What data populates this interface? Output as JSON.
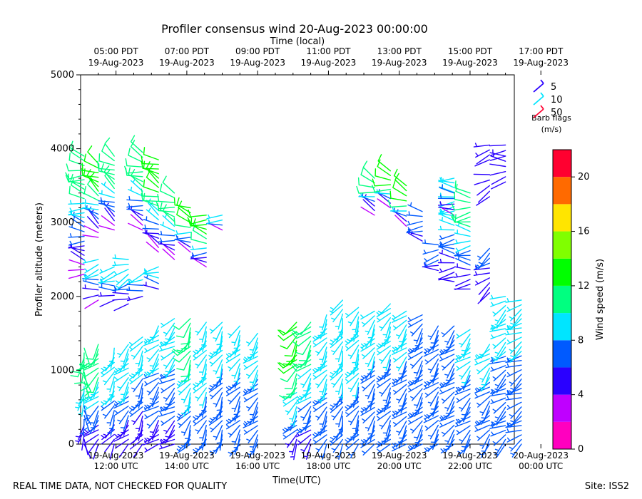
{
  "chart_data": {
    "type": "wind-barb-profile",
    "title": "Profiler consensus wind 20-Aug-2023 00:00:00",
    "xlabel": "Time(UTC)",
    "ylabel": "Profiler altitude (meters)",
    "top_axis_label": "Time (local)",
    "xlim_hours_utc": [
      11.0,
      23.25
    ],
    "ylim": [
      0,
      5000
    ],
    "yticks": [
      "0",
      "1000",
      "2000",
      "3000",
      "4000",
      "5000"
    ],
    "bottom_ticks": [
      {
        "hour": 12,
        "line1": "19-Aug-2023",
        "line2": "12:00 UTC"
      },
      {
        "hour": 14,
        "line1": "19-Aug-2023",
        "line2": "14:00 UTC"
      },
      {
        "hour": 16,
        "line1": "19-Aug-2023",
        "line2": "16:00 UTC"
      },
      {
        "hour": 18,
        "line1": "19-Aug-2023",
        "line2": "18:00 UTC"
      },
      {
        "hour": 20,
        "line1": "19-Aug-2023",
        "line2": "20:00 UTC"
      },
      {
        "hour": 22,
        "line1": "19-Aug-2023",
        "line2": "22:00 UTC"
      },
      {
        "hour": 24,
        "line1": "20-Aug-2023",
        "line2": "00:00 UTC"
      }
    ],
    "top_ticks": [
      {
        "hour": 12,
        "line1": "05:00 PDT",
        "line2": "19-Aug-2023"
      },
      {
        "hour": 14,
        "line1": "07:00 PDT",
        "line2": "19-Aug-2023"
      },
      {
        "hour": 16,
        "line1": "09:00 PDT",
        "line2": "19-Aug-2023"
      },
      {
        "hour": 18,
        "line1": "11:00 PDT",
        "line2": "19-Aug-2023"
      },
      {
        "hour": 20,
        "line1": "13:00 PDT",
        "line2": "19-Aug-2023"
      },
      {
        "hour": 22,
        "line1": "15:00 PDT",
        "line2": "19-Aug-2023"
      },
      {
        "hour": 24,
        "line1": "17:00 PDT",
        "line2": "19-Aug-2023"
      }
    ],
    "colorbar": {
      "label": "Wind speed (m/s)",
      "range": [
        0,
        22
      ],
      "ticks": [
        "0",
        "4",
        "8",
        "12",
        "16",
        "20"
      ],
      "bins": [
        {
          "from": 0,
          "to": 2,
          "color": "#ff00bf"
        },
        {
          "from": 2,
          "to": 4,
          "color": "#bf00ff"
        },
        {
          "from": 4,
          "to": 6,
          "color": "#2a00ff"
        },
        {
          "from": 6,
          "to": 8,
          "color": "#005aff"
        },
        {
          "from": 8,
          "to": 10,
          "color": "#00e5ff"
        },
        {
          "from": 10,
          "to": 12,
          "color": "#00ff80"
        },
        {
          "from": 12,
          "to": 14,
          "color": "#00ff00"
        },
        {
          "from": 14,
          "to": 16,
          "color": "#80ff00"
        },
        {
          "from": 16,
          "to": 18,
          "color": "#ffe500"
        },
        {
          "from": 18,
          "to": 20,
          "color": "#ff6a00"
        },
        {
          "from": 20,
          "to": 22,
          "color": "#ff0030"
        }
      ]
    },
    "barb_legend": {
      "title_line1": "Barb flags",
      "title_line2": "(m/s)",
      "entries": [
        {
          "value": "5",
          "color": "#2a00ff"
        },
        {
          "value": "10",
          "color": "#00e5ff"
        },
        {
          "value": "50",
          "color": "#ff0030"
        }
      ]
    },
    "barb_columns": [
      {
        "t": 11.1,
        "segments": [
          [
            0,
            1300,
            180,
            4,
            10
          ],
          [
            2300,
            3900,
            280,
            3,
            10
          ]
        ]
      },
      {
        "t": 11.5,
        "segments": [
          [
            0,
            1350,
            220,
            4,
            10
          ],
          [
            1950,
            2500,
            260,
            3,
            9
          ],
          [
            2800,
            3800,
            300,
            2,
            13
          ]
        ]
      },
      {
        "t": 11.95,
        "segments": [
          [
            0,
            1300,
            210,
            4,
            9
          ],
          [
            1950,
            2400,
            260,
            4,
            9
          ],
          [
            2900,
            3900,
            300,
            3,
            11
          ]
        ]
      },
      {
        "t": 12.35,
        "segments": [
          [
            0,
            1350,
            220,
            4,
            9
          ],
          [
            1900,
            2500,
            250,
            4,
            9
          ]
        ]
      },
      {
        "t": 12.75,
        "segments": [
          [
            0,
            1450,
            210,
            4,
            8
          ],
          [
            2000,
            2300,
            250,
            5,
            8
          ],
          [
            2900,
            3950,
            290,
            3,
            11
          ]
        ]
      },
      {
        "t": 13.2,
        "segments": [
          [
            0,
            1600,
            225,
            5,
            8
          ],
          [
            2100,
            2400,
            270,
            5,
            9
          ],
          [
            2600,
            3850,
            295,
            3,
            12
          ]
        ]
      },
      {
        "t": 13.65,
        "segments": [
          [
            0,
            1700,
            230,
            5,
            8
          ],
          [
            2500,
            3400,
            290,
            3,
            11
          ]
        ]
      },
      {
        "t": 14.1,
        "segments": [
          [
            0,
            1700,
            210,
            6,
            10
          ],
          [
            2600,
            3200,
            285,
            3,
            12
          ]
        ]
      },
      {
        "t": 14.55,
        "segments": [
          [
            0,
            1650,
            210,
            6,
            9
          ],
          [
            2400,
            3100,
            280,
            3,
            13
          ]
        ]
      },
      {
        "t": 15.0,
        "segments": [
          [
            0,
            1650,
            210,
            6,
            8
          ],
          [
            2900,
            3100,
            280,
            3,
            9
          ]
        ]
      },
      {
        "t": 15.5,
        "segments": [
          [
            0,
            1600,
            215,
            6,
            8
          ]
        ]
      },
      {
        "t": 16.0,
        "segments": [
          [
            0,
            1500,
            220,
            6,
            8
          ]
        ]
      },
      {
        "t": 17.1,
        "segments": [
          [
            0,
            1650,
            215,
            5,
            12
          ]
        ]
      },
      {
        "t": 17.5,
        "segments": [
          [
            0,
            1650,
            220,
            5,
            10
          ]
        ]
      },
      {
        "t": 17.95,
        "segments": [
          [
            0,
            1750,
            215,
            6,
            9
          ]
        ]
      },
      {
        "t": 18.4,
        "segments": [
          [
            0,
            1950,
            205,
            6,
            9
          ]
        ]
      },
      {
        "t": 18.85,
        "segments": [
          [
            0,
            1850,
            210,
            6,
            9
          ]
        ]
      },
      {
        "t": 19.3,
        "segments": [
          [
            0,
            1800,
            215,
            6,
            8
          ],
          [
            3100,
            3600,
            290,
            3,
            10
          ]
        ]
      },
      {
        "t": 19.75,
        "segments": [
          [
            0,
            1900,
            215,
            6,
            8
          ],
          [
            3200,
            3700,
            285,
            3,
            12
          ]
        ]
      },
      {
        "t": 20.2,
        "segments": [
          [
            0,
            1800,
            220,
            6,
            8
          ],
          [
            2950,
            3500,
            290,
            3,
            13
          ]
        ]
      },
      {
        "t": 20.65,
        "segments": [
          [
            0,
            1750,
            220,
            6,
            7
          ],
          [
            2750,
            3150,
            275,
            5,
            7
          ]
        ]
      },
      {
        "t": 21.1,
        "segments": [
          [
            0,
            1600,
            220,
            6,
            7
          ],
          [
            2350,
            2700,
            265,
            5,
            7
          ]
        ]
      },
      {
        "t": 21.55,
        "segments": [
          [
            0,
            1600,
            225,
            6,
            7
          ],
          [
            2200,
            3600,
            270,
            4,
            9
          ],
          [
            3100,
            3400,
            290,
            3,
            6
          ]
        ]
      },
      {
        "t": 22.0,
        "segments": [
          [
            0,
            1550,
            225,
            6,
            8
          ],
          [
            2100,
            3400,
            270,
            4,
            10
          ]
        ]
      },
      {
        "t": 22.55,
        "segments": [
          [
            0,
            1350,
            225,
            6,
            8
          ],
          [
            2050,
            2650,
            240,
            4,
            6
          ],
          [
            3350,
            3650,
            250,
            4,
            4
          ],
          [
            3850,
            4050,
            260,
            4,
            5
          ]
        ]
      },
      {
        "t": 23.0,
        "segments": [
          [
            0,
            2000,
            235,
            6,
            8
          ],
          [
            3550,
            3900,
            265,
            4,
            5
          ],
          [
            3900,
            4050,
            275,
            4,
            4
          ]
        ]
      },
      {
        "t": 23.45,
        "segments": [
          [
            0,
            1950,
            240,
            6,
            8
          ]
        ]
      }
    ]
  },
  "footer": {
    "left": "REAL TIME DATA, NOT CHECKED FOR QUALITY",
    "right": "Site: ISS2"
  }
}
